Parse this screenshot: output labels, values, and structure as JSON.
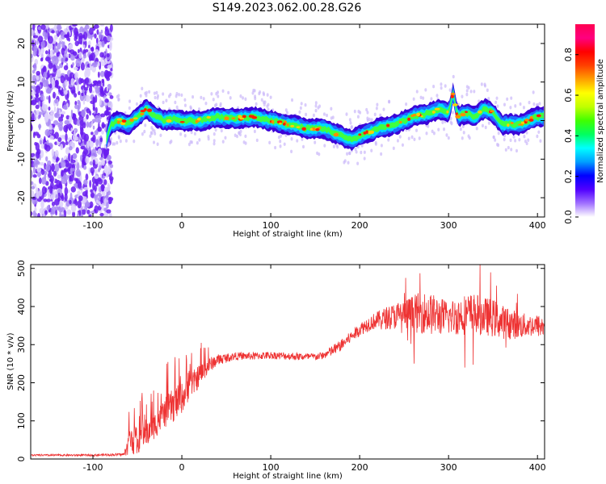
{
  "figure": {
    "title": "S149.2023.062.00.28.G26"
  },
  "chart_data": [
    {
      "type": "heatmap",
      "xlabel": "Height of straight line (km)",
      "ylabel": "Frequency (Hz)",
      "xlim": [
        -170,
        408
      ],
      "ylim": [
        -25,
        25
      ],
      "xticks": [
        -100,
        0,
        100,
        200,
        300,
        400
      ],
      "yticks": [
        -20,
        -10,
        0,
        10,
        20
      ],
      "grid": false,
      "noise_region_x": [
        -170,
        -85
      ],
      "ridge": {
        "x": [
          -85,
          -80,
          -70,
          -60,
          -50,
          -40,
          -30,
          -20,
          -10,
          0,
          20,
          40,
          60,
          80,
          100,
          120,
          140,
          160,
          170,
          180,
          190,
          200,
          210,
          220,
          240,
          260,
          280,
          290,
          300,
          305,
          310,
          320,
          330,
          340,
          350,
          360,
          370,
          380,
          390,
          400,
          408
        ],
        "frequency": [
          -5,
          -1,
          0,
          -1,
          1,
          3,
          1,
          0,
          0.5,
          0,
          0,
          1,
          0.5,
          1,
          0,
          -1,
          -2,
          -2,
          -3,
          -4,
          -5,
          -4,
          -3,
          -2,
          -1,
          1,
          2,
          3,
          2,
          7,
          1,
          2,
          1,
          3,
          2,
          -1,
          -1,
          -1,
          0,
          1,
          1
        ]
      },
      "colorbar": {
        "label": "Normalized spectral amplitude",
        "ticks": [
          0.0,
          0.2,
          0.4,
          0.6,
          0.8
        ],
        "range": [
          0,
          0.95
        ],
        "colors": [
          "#ffffff",
          "#a070ff",
          "#5000ff",
          "#0000ff",
          "#00a0ff",
          "#00ffff",
          "#00ff60",
          "#40ff00",
          "#c0ff00",
          "#ffff00",
          "#ffa000",
          "#ff4000",
          "#ff0000",
          "#ff0080",
          "#ff0050"
        ]
      }
    },
    {
      "type": "line",
      "xlabel": "Height of straight line (km)",
      "ylabel": "SNR (10 * v/v)",
      "xlim": [
        -170,
        408
      ],
      "ylim": [
        0,
        510
      ],
      "xticks": [
        -100,
        0,
        100,
        200,
        300,
        400
      ],
      "yticks": [
        0,
        100,
        200,
        300,
        400,
        500
      ],
      "grid": false,
      "series": [
        {
          "color": "#ee3333",
          "x": [
            -170,
            -100,
            -65,
            -60,
            -55,
            -50,
            -45,
            -40,
            -30,
            -20,
            -10,
            0,
            10,
            20,
            30,
            40,
            50,
            60,
            80,
            100,
            120,
            140,
            150,
            160,
            170,
            180,
            190,
            200,
            210,
            220,
            230,
            240,
            250,
            260,
            270,
            280,
            290,
            300,
            310,
            320,
            330,
            340,
            350,
            360,
            370,
            380,
            390,
            400,
            408
          ],
          "values": [
            10,
            10,
            12,
            40,
            60,
            30,
            70,
            60,
            90,
            120,
            140,
            160,
            190,
            220,
            245,
            260,
            265,
            270,
            270,
            272,
            270,
            268,
            268,
            272,
            285,
            300,
            320,
            340,
            355,
            365,
            370,
            375,
            380,
            380,
            385,
            380,
            375,
            370,
            375,
            380,
            380,
            375,
            370,
            360,
            355,
            350,
            350,
            350,
            345
          ],
          "noise_amplitude": [
            5,
            5,
            8,
            60,
            100,
            40,
            80,
            60,
            70,
            80,
            90,
            80,
            70,
            60,
            40,
            30,
            25,
            20,
            20,
            20,
            20,
            20,
            20,
            20,
            30,
            30,
            30,
            35,
            40,
            45,
            60,
            70,
            80,
            100,
            110,
            110,
            100,
            90,
            100,
            110,
            110,
            100,
            100,
            90,
            80,
            70,
            60,
            60,
            60
          ]
        }
      ]
    }
  ]
}
